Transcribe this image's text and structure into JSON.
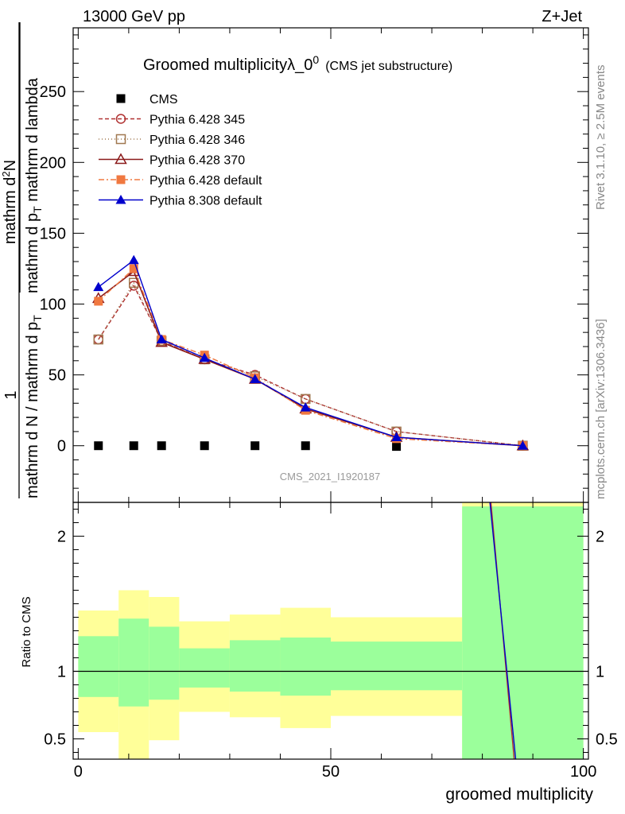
{
  "header": {
    "left": "13000 GeV pp",
    "right": "Z+Jet"
  },
  "side_texts": {
    "rivet": "Rivet 3.1.10, ≥ 2.5M events",
    "mcplots": "mcplots.cern.ch [arXiv:1306.3436]"
  },
  "chart_data": [
    {
      "type": "line",
      "title_main": "Groomed multiplicityλ_0",
      "title_sup": "0",
      "title_sub": "(CMS jet substructure)",
      "watermark": "CMS_2021_I1920187",
      "ylabel_num_line1": "mathrm d",
      "ylabel_num_super": "2",
      "ylabel_num_line2": "N",
      "ylabel_den": "mathrm d p",
      "ylabel_den_sub": "T",
      "ylabel_den2": " mathrm d lambda",
      "ylabel_prefix_num": "1",
      "ylabel_prefix_den": "mathrm d N / mathrm d p",
      "ylabel_prefix_den_sub": "T",
      "xlim": [
        -1,
        101
      ],
      "ylim": [
        -40,
        295
      ],
      "yticks": [
        0,
        50,
        100,
        150,
        200,
        250
      ],
      "legend_position": "top-left",
      "x": [
        4,
        11,
        16.5,
        25,
        35,
        45,
        63,
        88
      ],
      "series": [
        {
          "name": "CMS",
          "color": "#000000",
          "marker": "square-filled",
          "dash": "none",
          "values": [
            0,
            0,
            0,
            0,
            0,
            0,
            -0.5,
            0
          ]
        },
        {
          "name": "Pythia 6.428 345",
          "color": "#b03030",
          "marker": "circle-open",
          "dash": "5,3",
          "values": [
            75,
            113,
            74,
            61,
            50,
            33,
            10,
            0
          ]
        },
        {
          "name": "Pythia 6.428 346",
          "color": "#a07850",
          "marker": "square-open",
          "dash": "1,3",
          "values": [
            75,
            115,
            74,
            61,
            49,
            33,
            10,
            0
          ]
        },
        {
          "name": "Pythia 6.428 370",
          "color": "#8b1a1a",
          "marker": "triangle-open",
          "dash": "none",
          "values": [
            104,
            123,
            73,
            61,
            47,
            26,
            6,
            0
          ]
        },
        {
          "name": "Pythia 6.428 default",
          "color": "#f07840",
          "marker": "square-filled",
          "dash": "7,3,2,3",
          "values": [
            102,
            125,
            75,
            64,
            48,
            25,
            5,
            0
          ]
        },
        {
          "name": "Pythia 8.308 default",
          "color": "#0000cc",
          "marker": "triangle-filled",
          "dash": "none",
          "values": [
            112,
            131,
            75,
            62,
            47,
            27,
            6,
            0
          ]
        }
      ]
    },
    {
      "type": "area",
      "ylabel": "Ratio to CMS",
      "xlabel": "groomed multiplicity",
      "xlim": [
        -1,
        101
      ],
      "xticks": [
        0,
        50,
        100
      ],
      "ylim": [
        0.35,
        2.25
      ],
      "yticks": [
        0.5,
        1,
        2
      ],
      "reference_line": 1,
      "bins": [
        {
          "lo": 0,
          "hi": 8,
          "green": [
            0.81,
            1.26
          ],
          "yellow": [
            0.55,
            1.45
          ]
        },
        {
          "lo": 8,
          "hi": 14,
          "green": [
            0.74,
            1.39
          ],
          "yellow": [
            0.35,
            1.6
          ]
        },
        {
          "lo": 14,
          "hi": 20,
          "green": [
            0.79,
            1.33
          ],
          "yellow": [
            0.49,
            1.55
          ]
        },
        {
          "lo": 20,
          "hi": 30,
          "green": [
            0.88,
            1.17
          ],
          "yellow": [
            0.7,
            1.37
          ]
        },
        {
          "lo": 30,
          "hi": 40,
          "green": [
            0.85,
            1.23
          ],
          "yellow": [
            0.66,
            1.42
          ]
        },
        {
          "lo": 40,
          "hi": 50,
          "green": [
            0.82,
            1.25
          ],
          "yellow": [
            0.58,
            1.47
          ]
        },
        {
          "lo": 50,
          "hi": 76,
          "green": [
            0.86,
            1.22
          ],
          "yellow": [
            0.67,
            1.4
          ]
        },
        {
          "lo": 76,
          "hi": 100,
          "green": [
            0.35,
            2.22
          ],
          "yellow": [
            0.35,
            2.25
          ]
        }
      ],
      "ratio_lines": [
        {
          "color": "#b03030",
          "points": [
            [
              81.7,
              2.25
            ],
            [
              86.3,
              0.35
            ]
          ]
        },
        {
          "color": "#0000cc",
          "points": [
            [
              81.5,
              2.25
            ],
            [
              86.6,
              0.35
            ]
          ]
        }
      ],
      "colors": {
        "green": "#9bff9b",
        "yellow": "#ffff99"
      }
    }
  ]
}
